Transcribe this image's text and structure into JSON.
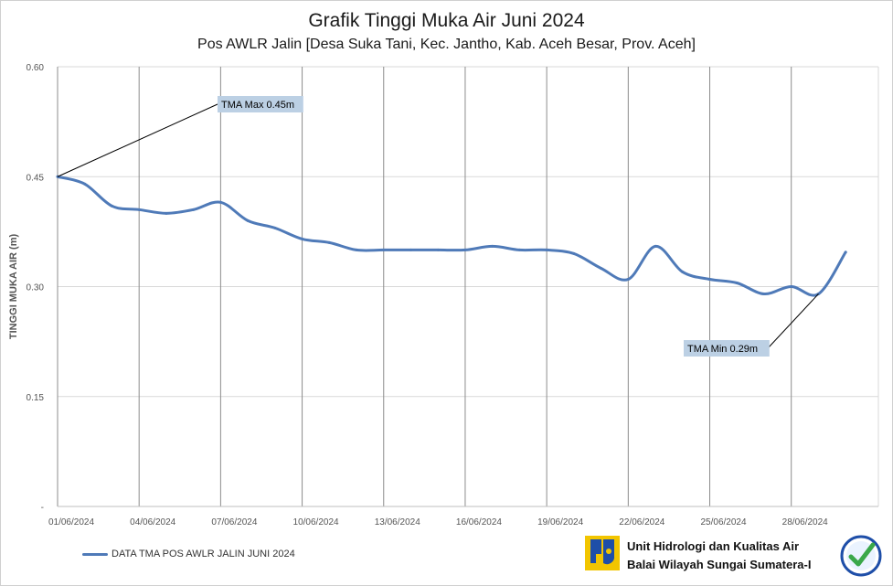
{
  "chart_data": {
    "type": "line",
    "title": "Grafik Tinggi Muka Air Juni 2024",
    "subtitle": "Pos AWLR Jalin [Desa Suka Tani, Kec. Jantho, Kab. Aceh Besar, Prov. Aceh]",
    "ylabel": "TINGGI MUKA AIR (m)",
    "xlabel": "",
    "ylim": [
      0,
      0.6
    ],
    "yticks": [
      0,
      0.15,
      0.3,
      0.45,
      0.6
    ],
    "ytick_labels": [
      "-",
      "0.15",
      "0.30",
      "0.45",
      "0.60"
    ],
    "xlim_days": [
      1,
      30
    ],
    "xtick_labels": [
      "01/06/2024",
      "04/06/2024",
      "07/06/2024",
      "10/06/2024",
      "13/06/2024",
      "16/06/2024",
      "19/06/2024",
      "22/06/2024",
      "25/06/2024",
      "28/06/2024"
    ],
    "grid": "vertical and horizontal",
    "legend_position": "bottom-left",
    "series": [
      {
        "name": "DATA TMA POS AWLR JALIN JUNI 2024",
        "color": "#4f7ab8",
        "x": [
          "01/06/2024",
          "02/06/2024",
          "03/06/2024",
          "04/06/2024",
          "05/06/2024",
          "06/06/2024",
          "07/06/2024",
          "08/06/2024",
          "09/06/2024",
          "10/06/2024",
          "11/06/2024",
          "12/06/2024",
          "13/06/2024",
          "14/06/2024",
          "15/06/2024",
          "16/06/2024",
          "17/06/2024",
          "18/06/2024",
          "19/06/2024",
          "20/06/2024",
          "21/06/2024",
          "22/06/2024",
          "23/06/2024",
          "24/06/2024",
          "25/06/2024",
          "26/06/2024",
          "27/06/2024",
          "28/06/2024",
          "29/06/2024",
          "30/06/2024"
        ],
        "values": [
          0.45,
          0.44,
          0.41,
          0.405,
          0.4,
          0.405,
          0.415,
          0.39,
          0.38,
          0.365,
          0.36,
          0.35,
          0.35,
          0.35,
          0.35,
          0.35,
          0.355,
          0.35,
          0.35,
          0.345,
          0.325,
          0.31,
          0.355,
          0.32,
          0.31,
          0.305,
          0.29,
          0.3,
          0.29,
          0.347
        ]
      }
    ],
    "annotations": [
      {
        "text": "TMA Max 0.45m",
        "x": "01/06/2024",
        "y": 0.45
      },
      {
        "text": "TMA Min 0.29m",
        "x": "29/06/2024",
        "y": 0.29
      }
    ]
  },
  "org": {
    "line1": "Unit Hidrologi dan Kualitas Air",
    "line2": "Balai Wilayah Sungai Sumatera-I"
  },
  "colors": {
    "series": "#4f7ab8",
    "annotation_bg": "#bcd0e4",
    "logo_blue": "#1e4ea8",
    "logo_yellow": "#f2c500",
    "cert_green": "#3aa84a"
  }
}
